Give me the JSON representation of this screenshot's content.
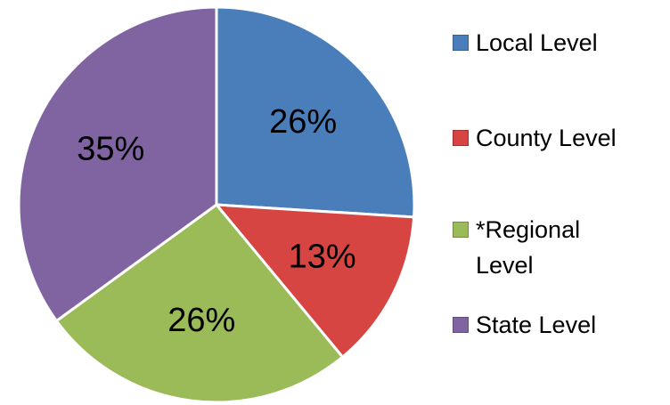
{
  "chart_data": {
    "type": "pie",
    "categories": [
      "Local Level",
      "County Level",
      "*Regional Level",
      "State Level"
    ],
    "values": [
      26,
      13,
      26,
      35
    ],
    "value_labels": [
      "26%",
      "13%",
      "26%",
      "35%"
    ],
    "colors": [
      "#4a7ebb",
      "#d64541",
      "#9bbb59",
      "#8064a2"
    ],
    "legend": "right"
  }
}
